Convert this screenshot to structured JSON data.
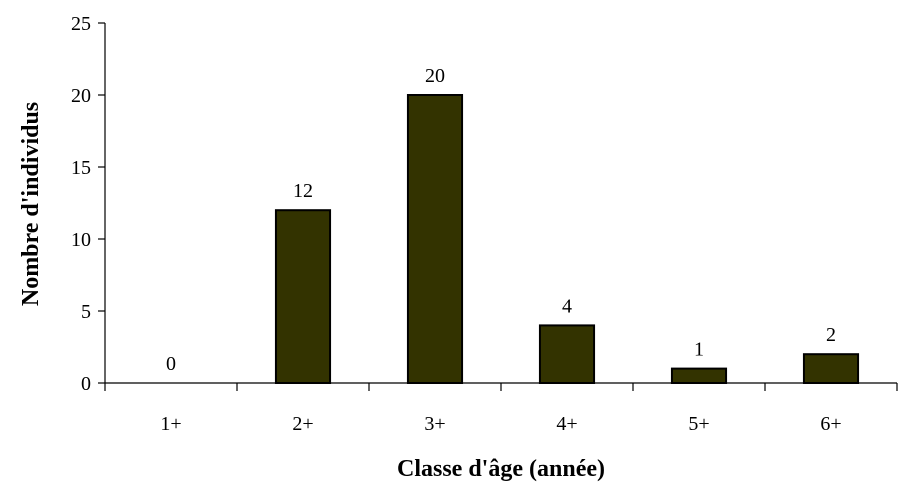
{
  "chart_data": {
    "type": "bar",
    "title": "",
    "xlabel": "Classe d'âge (année)",
    "ylabel": "Nombre d'individus",
    "categories": [
      "1+",
      "2+",
      "3+",
      "4+",
      "5+",
      "6+"
    ],
    "values": [
      0,
      12,
      20,
      4,
      1,
      2
    ],
    "data_labels": [
      "0",
      "12",
      "20",
      "4",
      "1",
      "2"
    ],
    "ylim": [
      0,
      25
    ],
    "yticks": [
      0,
      5,
      10,
      15,
      20,
      25
    ],
    "ytick_labels": [
      "0",
      "5",
      "10",
      "15",
      "20",
      "25"
    ],
    "grid": false,
    "legend": "none",
    "bar_color": "#333300",
    "bar_edge_color": "#000000"
  }
}
